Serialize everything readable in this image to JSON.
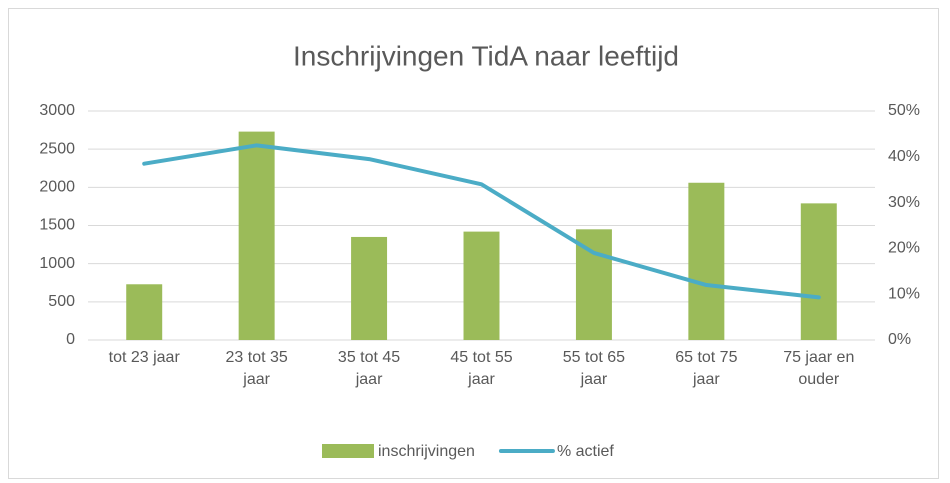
{
  "chart_data": {
    "type": "bar-line",
    "title": "Inschrijvingen TidA naar leeftijd",
    "categories": [
      "tot 23 jaar",
      "23 tot 35 jaar",
      "35 tot 45 jaar",
      "45 tot 55 jaar",
      "55 tot 65 jaar",
      "65 tot 75 jaar",
      "75 jaar en ouder"
    ],
    "series": [
      {
        "name": "inschrijvingen",
        "type": "bar",
        "color": "#9bbb59",
        "values": [
          730,
          2730,
          1350,
          1420,
          1450,
          2060,
          1790
        ]
      },
      {
        "name": "% actief",
        "type": "line",
        "axis": "y2",
        "color": "#4bacc6",
        "values": [
          38.5,
          42.5,
          39.5,
          34,
          19,
          12,
          9.3
        ]
      }
    ],
    "ylim": [
      0,
      3000
    ],
    "yticks": [
      0,
      500,
      1000,
      1500,
      2000,
      2500,
      3000
    ],
    "y2lim": [
      0,
      50
    ],
    "y2ticks": [
      {
        "value": 0,
        "label": "0%"
      },
      {
        "value": 10,
        "label": "10%"
      },
      {
        "value": 20,
        "label": "20%"
      },
      {
        "value": 30,
        "label": "30%"
      },
      {
        "value": 40,
        "label": "40%"
      },
      {
        "value": 50,
        "label": "50%"
      }
    ],
    "grid": true,
    "legend": "bottom"
  }
}
